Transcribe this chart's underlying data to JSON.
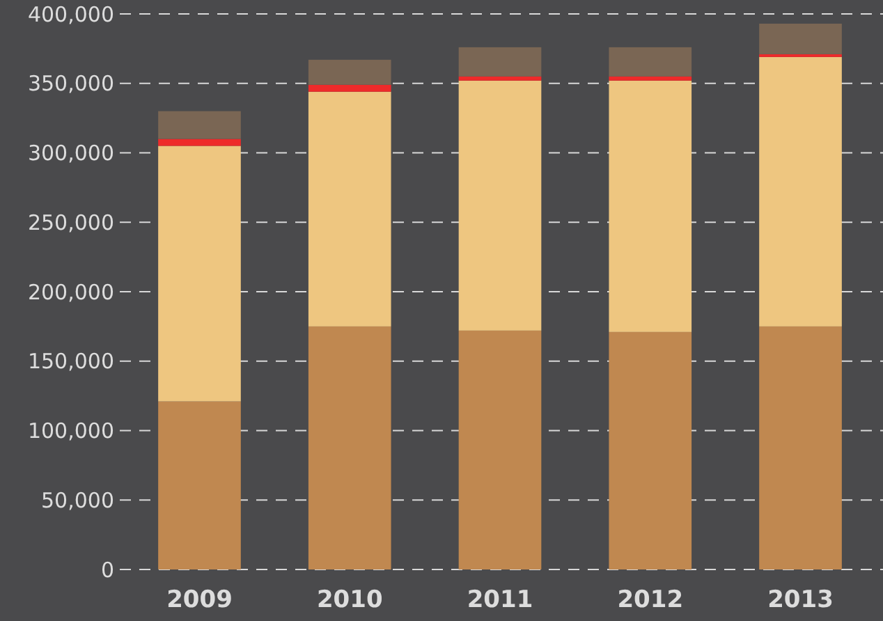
{
  "chart_data": {
    "type": "bar",
    "stacked": true,
    "categories": [
      "2009",
      "2010",
      "2011",
      "2012",
      "2013"
    ],
    "series": [
      {
        "color": "#c08850",
        "values": [
          121000,
          175000,
          172000,
          171000,
          175000
        ]
      },
      {
        "color": "#eec680",
        "values": [
          184000,
          169000,
          180000,
          181000,
          194000
        ]
      },
      {
        "color": "#ee2a2a",
        "values": [
          5000,
          5000,
          3000,
          3000,
          2000
        ]
      },
      {
        "color": "#7a6654",
        "values": [
          20000,
          18000,
          21000,
          21000,
          22000
        ]
      }
    ],
    "ylim": [
      0,
      400000
    ],
    "yticks": [
      0,
      {
        "value": 50000,
        "label": "50,000"
      },
      {
        "value": 100000,
        "label": "100,000"
      },
      {
        "value": 150000,
        "label": "150,000"
      },
      {
        "value": 200000,
        "label": "200,000"
      },
      {
        "value": 250000,
        "label": "250,000"
      },
      {
        "value": 300000,
        "label": "300,000"
      },
      {
        "value": 350000,
        "label": "350,000"
      },
      {
        "value": 400000,
        "label": "400,000"
      }
    ],
    "grid": "y"
  }
}
